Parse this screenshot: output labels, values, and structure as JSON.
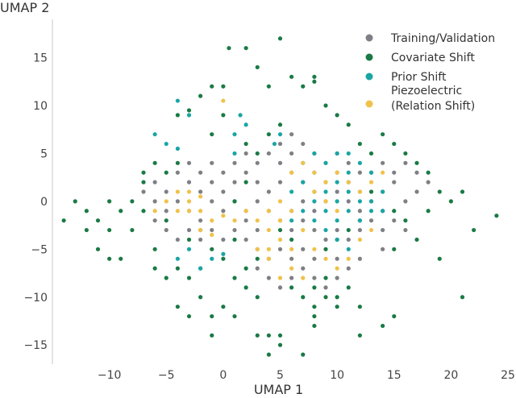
{
  "chart_data": {
    "type": "scatter",
    "title": "",
    "xlabel": "UMAP 1",
    "ylabel": "UMAP 2",
    "xlim": [
      -15,
      25
    ],
    "ylim": [
      -17,
      19
    ],
    "xticks": [
      -10,
      -5,
      0,
      5,
      10,
      15,
      20,
      25
    ],
    "yticks": [
      -15,
      -10,
      -5,
      0,
      5,
      10,
      15
    ],
    "grid": false,
    "legend_position": "top-right",
    "series": [
      {
        "name": "Training/Validation",
        "color": "#7f7f85",
        "points": [
          [
            -6,
            2
          ],
          [
            -5,
            1
          ],
          [
            -4,
            3
          ],
          [
            -3,
            2
          ],
          [
            -2,
            1
          ],
          [
            -1,
            2
          ],
          [
            0,
            1
          ],
          [
            1,
            2
          ],
          [
            2,
            3
          ],
          [
            3,
            2
          ],
          [
            -5,
            -1
          ],
          [
            -4,
            0
          ],
          [
            -3,
            -1
          ],
          [
            -2,
            -2
          ],
          [
            -1,
            0
          ],
          [
            0,
            -1
          ],
          [
            1,
            0
          ],
          [
            2,
            -1
          ],
          [
            3,
            0
          ],
          [
            4,
            1
          ],
          [
            5,
            2
          ],
          [
            6,
            3
          ],
          [
            7,
            2
          ],
          [
            8,
            1
          ],
          [
            9,
            0
          ],
          [
            10,
            1
          ],
          [
            11,
            2
          ],
          [
            12,
            1
          ],
          [
            13,
            0
          ],
          [
            14,
            1
          ],
          [
            15,
            2
          ],
          [
            16,
            0
          ],
          [
            17,
            1
          ],
          [
            4,
            -1
          ],
          [
            5,
            -2
          ],
          [
            6,
            -3
          ],
          [
            7,
            -2
          ],
          [
            8,
            -3
          ],
          [
            9,
            -4
          ],
          [
            10,
            -3
          ],
          [
            11,
            -4
          ],
          [
            12,
            -3
          ],
          [
            13,
            -2
          ],
          [
            14,
            -3
          ],
          [
            3,
            4
          ],
          [
            4,
            5
          ],
          [
            5,
            4
          ],
          [
            6,
            5
          ],
          [
            7,
            6
          ],
          [
            8,
            5
          ],
          [
            9,
            4
          ],
          [
            10,
            5
          ],
          [
            11,
            4
          ],
          [
            12,
            3
          ],
          [
            5,
            -5
          ],
          [
            6,
            -6
          ],
          [
            7,
            -5
          ],
          [
            4,
            -6
          ],
          [
            3,
            -5
          ],
          [
            3,
            -7
          ],
          [
            4,
            -8
          ],
          [
            5,
            -9
          ],
          [
            6,
            -8
          ],
          [
            7,
            -7
          ],
          [
            8,
            -8
          ],
          [
            9,
            -9
          ],
          [
            10,
            -8
          ],
          [
            11,
            -7
          ],
          [
            5,
            6
          ],
          [
            6,
            7
          ],
          [
            3,
            -3
          ],
          [
            2,
            -4
          ],
          [
            1,
            -3
          ],
          [
            0,
            -4
          ],
          [
            -1,
            -3
          ],
          [
            -2,
            -4
          ],
          [
            -3,
            -3
          ],
          [
            -4,
            -4
          ],
          [
            -5,
            -3
          ],
          [
            -6,
            -2
          ],
          [
            -6,
            0
          ],
          [
            -7,
            1
          ],
          [
            2,
            5
          ],
          [
            1,
            4
          ],
          [
            0,
            3
          ],
          [
            -1,
            4
          ],
          [
            15,
            -2
          ],
          [
            16,
            -3
          ],
          [
            14,
            -5
          ],
          [
            12,
            -6
          ],
          [
            10,
            -6
          ],
          [
            8,
            -6
          ],
          [
            2,
            -2
          ],
          [
            -2,
            3
          ],
          [
            -3,
            4
          ],
          [
            6,
            -1
          ],
          [
            7,
            0
          ],
          [
            8,
            -1
          ],
          [
            9,
            2
          ],
          [
            10,
            3
          ],
          [
            11,
            0
          ],
          [
            12,
            -1
          ],
          [
            13,
            3
          ],
          [
            14,
            4
          ],
          [
            15,
            3
          ],
          [
            16,
            4
          ],
          [
            17,
            3
          ],
          [
            18,
            2
          ]
        ]
      },
      {
        "name": "Covariate Shift",
        "color": "#1a7a45",
        "points": [
          [
            -13,
            0
          ],
          [
            -11,
            -2
          ],
          [
            -10,
            0
          ],
          [
            -9,
            -6
          ],
          [
            -12,
            -3
          ],
          [
            -8,
            -3
          ],
          [
            -7,
            -1
          ],
          [
            -7,
            2
          ],
          [
            -6,
            4
          ],
          [
            -5,
            3
          ],
          [
            -4,
            4
          ],
          [
            -3,
            -4
          ],
          [
            -2,
            -3
          ],
          [
            -1,
            -5
          ],
          [
            0,
            -6
          ],
          [
            1,
            -4
          ],
          [
            -5,
            -2
          ],
          [
            -6,
            -5
          ],
          [
            -4,
            -7
          ],
          [
            -3,
            -8
          ],
          [
            -2,
            -10
          ],
          [
            -1,
            -12
          ],
          [
            0,
            -11
          ],
          [
            2,
            -7
          ],
          [
            3,
            -6
          ],
          [
            1,
            -8
          ],
          [
            2,
            6
          ],
          [
            3,
            5
          ],
          [
            4,
            7
          ],
          [
            5,
            8
          ],
          [
            0,
            9
          ],
          [
            -1,
            7
          ],
          [
            -4,
            9
          ],
          [
            -3,
            9.5
          ],
          [
            -2,
            11
          ],
          [
            -1,
            12
          ],
          [
            0,
            12
          ],
          [
            0.5,
            16
          ],
          [
            2,
            16
          ],
          [
            3,
            14
          ],
          [
            4,
            12
          ],
          [
            5,
            17
          ],
          [
            6,
            13
          ],
          [
            7,
            12
          ],
          [
            8,
            13
          ],
          [
            8,
            12.5
          ],
          [
            9,
            10
          ],
          [
            10,
            9
          ],
          [
            11,
            8
          ],
          [
            12,
            6
          ],
          [
            13,
            5
          ],
          [
            14,
            7
          ],
          [
            15,
            6
          ],
          [
            16,
            5
          ],
          [
            17,
            4
          ],
          [
            18,
            3
          ],
          [
            19,
            1
          ],
          [
            20,
            0
          ],
          [
            21,
            1
          ],
          [
            22,
            -3
          ],
          [
            24,
            -1.5
          ],
          [
            19,
            -6
          ],
          [
            21,
            -10
          ],
          [
            17,
            -4
          ],
          [
            15,
            -5
          ],
          [
            15,
            -12
          ],
          [
            14,
            -13
          ],
          [
            12,
            -11
          ],
          [
            12,
            -14
          ],
          [
            9,
            -10
          ],
          [
            8,
            -11
          ],
          [
            7,
            -10
          ],
          [
            6,
            -9
          ],
          [
            4,
            -14
          ],
          [
            5,
            -14
          ],
          [
            3,
            -14
          ],
          [
            5,
            -15
          ],
          [
            7,
            -16
          ],
          [
            4,
            -16
          ],
          [
            -1,
            -14
          ],
          [
            -3,
            -12
          ],
          [
            -4,
            -11
          ],
          [
            1,
            -12
          ],
          [
            8,
            -12
          ],
          [
            10,
            -11
          ],
          [
            11,
            -9
          ],
          [
            16,
            -2
          ],
          [
            18,
            -1
          ],
          [
            13,
            1
          ],
          [
            12,
            -2
          ],
          [
            6,
            -4
          ],
          [
            5,
            -3
          ],
          [
            -7,
            3
          ],
          [
            -8,
            0
          ],
          [
            -9,
            -1
          ],
          [
            -10,
            -3
          ],
          [
            -12,
            -1
          ],
          [
            -11,
            -5
          ],
          [
            -10,
            -6
          ],
          [
            -14,
            -2
          ],
          [
            2,
            -9
          ],
          [
            3,
            -10
          ],
          [
            -2,
            -7
          ],
          [
            -5,
            -8
          ],
          [
            -6,
            -7
          ],
          [
            1,
            0
          ],
          [
            2,
            2
          ],
          [
            9,
            -5
          ],
          [
            10,
            -4
          ],
          [
            11,
            -3
          ],
          [
            14,
            -1
          ],
          [
            15,
            -1
          ],
          [
            8,
            -9
          ],
          [
            9,
            -8
          ],
          [
            10,
            -10
          ],
          [
            8,
            -13
          ]
        ]
      },
      {
        "name": "Prior Shift",
        "color": "#1aa5a5",
        "points": [
          [
            6,
            1
          ],
          [
            7,
            2
          ],
          [
            8,
            3
          ],
          [
            9,
            4
          ],
          [
            10,
            2
          ],
          [
            11,
            1
          ],
          [
            12,
            0
          ],
          [
            13,
            -1
          ],
          [
            7,
            -1
          ],
          [
            8,
            -2
          ],
          [
            9,
            -1
          ],
          [
            10,
            -2
          ],
          [
            11,
            -1
          ],
          [
            12,
            -2
          ],
          [
            13,
            0
          ],
          [
            14,
            1
          ],
          [
            8,
            0
          ],
          [
            9,
            1
          ],
          [
            10,
            0
          ],
          [
            11,
            3
          ],
          [
            12,
            4
          ],
          [
            10,
            5
          ],
          [
            11,
            5
          ],
          [
            9,
            -3
          ],
          [
            10,
            -4
          ],
          [
            11,
            -5
          ],
          [
            8,
            5
          ],
          [
            7,
            4
          ],
          [
            6,
            -2
          ],
          [
            13,
            3
          ],
          [
            14,
            -1
          ],
          [
            -5,
            6
          ],
          [
            -6,
            7
          ],
          [
            -4,
            5.5
          ],
          [
            1,
            7
          ],
          [
            2,
            8
          ],
          [
            1,
            5
          ],
          [
            -3,
            -5
          ],
          [
            -4,
            -6
          ],
          [
            -1,
            -6
          ],
          [
            0,
            -5.5
          ],
          [
            -2,
            -7
          ],
          [
            -3,
            9
          ],
          [
            1.5,
            9
          ],
          [
            -4,
            10.5
          ],
          [
            4.5,
            6
          ],
          [
            5,
            7
          ]
        ]
      },
      {
        "name": "Piezoelectric\n(Relation Shift)",
        "color": "#f0c24a",
        "points": [
          [
            -4,
            1
          ],
          [
            -3,
            0
          ],
          [
            -2,
            0.5
          ],
          [
            -3,
            -1
          ],
          [
            -4,
            -1
          ],
          [
            -2,
            -1
          ],
          [
            -1,
            -2
          ],
          [
            0,
            -1.5
          ],
          [
            1,
            -2
          ],
          [
            -2,
            -3
          ],
          [
            -1,
            -3.5
          ],
          [
            2,
            -1
          ],
          [
            3,
            -2
          ],
          [
            4,
            -3
          ],
          [
            5,
            -2
          ],
          [
            4,
            -1
          ],
          [
            5,
            0
          ],
          [
            6,
            -1
          ],
          [
            7,
            -3
          ],
          [
            6,
            3
          ],
          [
            7,
            4
          ],
          [
            8,
            3
          ],
          [
            9,
            2
          ],
          [
            10,
            3
          ],
          [
            11,
            2
          ],
          [
            8,
            1
          ],
          [
            9,
            0
          ],
          [
            10,
            -1
          ],
          [
            12,
            1
          ],
          [
            13,
            2
          ],
          [
            14,
            3
          ],
          [
            13,
            -3
          ],
          [
            12,
            -4
          ],
          [
            11,
            -6
          ],
          [
            10,
            -7
          ],
          [
            9,
            -6
          ],
          [
            8,
            -5
          ],
          [
            6,
            -5
          ],
          [
            5,
            -4
          ],
          [
            4,
            -6
          ],
          [
            3,
            -5
          ],
          [
            4,
            -5
          ],
          [
            5,
            -8
          ],
          [
            6,
            -7
          ],
          [
            7,
            -8
          ],
          [
            0,
            10.5
          ],
          [
            -3,
            1
          ],
          [
            -5,
            0
          ],
          [
            -6,
            -1
          ]
        ]
      }
    ]
  },
  "legend": {
    "items": [
      {
        "label": "Training/Validation",
        "color": "#7f7f85"
      },
      {
        "label": "Covariate Shift",
        "color": "#1a7a45"
      },
      {
        "label": "Prior Shift",
        "color": "#1aa5a5"
      },
      {
        "label": "Piezoelectric",
        "label2": "(Relation Shift)",
        "color": "#f0c24a"
      }
    ]
  }
}
